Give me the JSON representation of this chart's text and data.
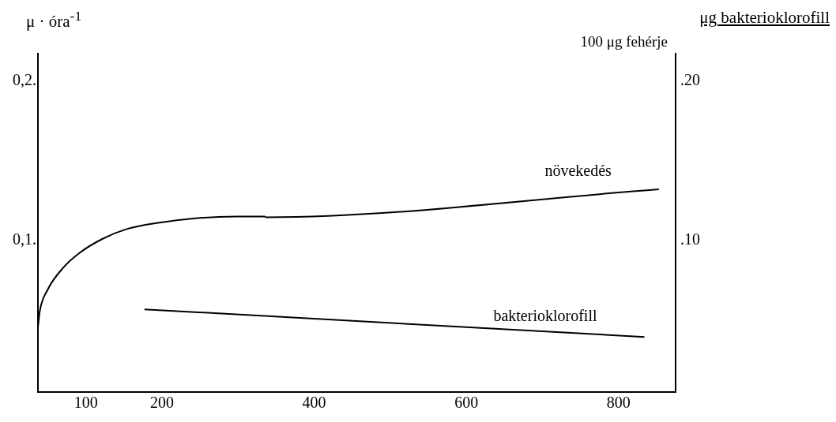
{
  "chart_data": {
    "type": "line",
    "ylabel": "μ · óra$^{-1}$",
    "y2label": "μg bakterioklorofill\n100 μg fehérje",
    "xlim": [
      37,
      875
    ],
    "xticks": [
      100,
      200,
      400,
      600,
      800
    ],
    "ylim": [
      0.005,
      0.217
    ],
    "yticks": [
      {
        "value": 0.1,
        "label": "0,1."
      },
      {
        "value": 0.2,
        "label": "0,2."
      }
    ],
    "y2lim": [
      0.005,
      0.217
    ],
    "y2ticks": [
      {
        "value": 0.1,
        "label": ".10"
      },
      {
        "value": 0.2,
        "label": ".20"
      }
    ],
    "grid": false,
    "legend": false,
    "marker": "none",
    "line_style": "solid",
    "series": [
      {
        "name": "növekedés",
        "color": "#000000",
        "x": [
          37,
          39.4,
          49.7,
          70.5,
          91.2,
          122,
          153,
          195,
          247,
          298,
          335,
          337,
          853
        ],
        "values": [
          0.0455,
          0.0555,
          0.069,
          0.083,
          0.092,
          0.101,
          0.107,
          0.111,
          0.114,
          0.115,
          0.115,
          0.1145,
          0.132
        ]
      },
      {
        "name": "bakterioklorofill",
        "color": "#000000",
        "axis": "y2",
        "x": [
          177,
          834
        ],
        "values": [
          0.0568,
          0.0395
        ]
      }
    ]
  }
}
